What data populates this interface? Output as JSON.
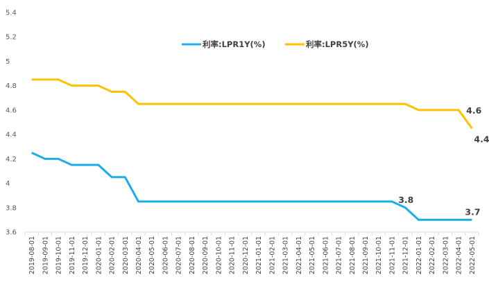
{
  "chart_data": {
    "type": "line",
    "categories": [
      "2019-08-01",
      "2019-09-01",
      "2019-10-01",
      "2019-11-01",
      "2019-12-01",
      "2020-01-01",
      "2020-02-01",
      "2020-03-01",
      "2020-04-01",
      "2020-05-01",
      "2020-06-01",
      "2020-07-01",
      "2020-08-01",
      "2020-09-01",
      "2020-10-01",
      "2020-11-01",
      "2020-12-01",
      "2021-01-01",
      "2021-02-01",
      "2021-03-01",
      "2021-04-01",
      "2021-05-01",
      "2021-06-01",
      "2021-07-01",
      "2021-08-01",
      "2021-09-01",
      "2021-10-01",
      "2021-11-01",
      "2021-12-01",
      "2022-01-01",
      "2022-02-01",
      "2022-03-01",
      "2022-04-01",
      "2022-05-01"
    ],
    "series": [
      {
        "name": "利率:LPR1Y(%)",
        "color": "#1AAEE8",
        "values": [
          4.25,
          4.2,
          4.2,
          4.15,
          4.15,
          4.15,
          4.05,
          4.05,
          3.85,
          3.85,
          3.85,
          3.85,
          3.85,
          3.85,
          3.85,
          3.85,
          3.85,
          3.85,
          3.85,
          3.85,
          3.85,
          3.85,
          3.85,
          3.85,
          3.85,
          3.85,
          3.85,
          3.85,
          3.8,
          3.7,
          3.7,
          3.7,
          3.7,
          3.7
        ]
      },
      {
        "name": "利率:LPR5Y(%)",
        "color": "#FFC000",
        "values": [
          4.85,
          4.85,
          4.85,
          4.8,
          4.8,
          4.8,
          4.75,
          4.75,
          4.65,
          4.65,
          4.65,
          4.65,
          4.65,
          4.65,
          4.65,
          4.65,
          4.65,
          4.65,
          4.65,
          4.65,
          4.65,
          4.65,
          4.65,
          4.65,
          4.65,
          4.65,
          4.65,
          4.65,
          4.65,
          4.6,
          4.6,
          4.6,
          4.6,
          4.45
        ]
      }
    ],
    "ylim": [
      3.6,
      5.4
    ],
    "yticks": [
      "3.6",
      "3.8",
      "4",
      "4.2",
      "4.4",
      "4.6",
      "4.8",
      "5",
      "5.2",
      "5.4"
    ],
    "grid": false,
    "legend_position": "top-center",
    "data_labels": [
      {
        "series": 0,
        "index": 28,
        "text": "3.8"
      },
      {
        "series": 0,
        "index": 33,
        "text": "3.7"
      },
      {
        "series": 1,
        "index": 32,
        "text": "4.6"
      },
      {
        "series": 1,
        "index": 33,
        "text": "4.45"
      }
    ]
  }
}
